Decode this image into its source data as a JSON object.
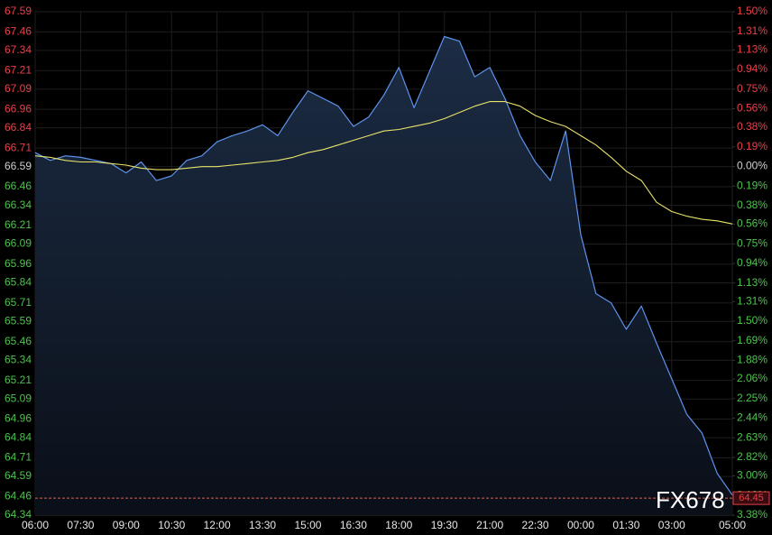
{
  "chart_data": {
    "type": "line",
    "x": [
      "06:00",
      "06:30",
      "07:00",
      "07:30",
      "08:00",
      "08:30",
      "09:00",
      "09:30",
      "10:00",
      "10:30",
      "11:00",
      "11:30",
      "12:00",
      "12:30",
      "13:00",
      "13:30",
      "14:00",
      "14:30",
      "15:00",
      "15:30",
      "16:00",
      "16:30",
      "17:00",
      "17:30",
      "18:00",
      "18:30",
      "19:00",
      "19:30",
      "20:00",
      "20:30",
      "21:00",
      "21:30",
      "22:00",
      "22:30",
      "23:00",
      "23:30",
      "00:00",
      "00:30",
      "01:00",
      "01:30",
      "02:00",
      "02:30",
      "03:00",
      "03:30",
      "04:00",
      "04:30",
      "05:00"
    ],
    "series": [
      {
        "color": "#5d93ec",
        "values": [
          66.68,
          66.63,
          66.66,
          66.65,
          66.63,
          66.61,
          66.55,
          66.62,
          66.5,
          66.53,
          66.63,
          66.66,
          66.75,
          66.79,
          66.82,
          66.86,
          66.79,
          66.94,
          67.08,
          67.03,
          66.98,
          66.85,
          66.91,
          67.05,
          67.23,
          66.97,
          67.2,
          67.43,
          67.4,
          67.17,
          67.23,
          67.03,
          66.79,
          66.62,
          66.5,
          66.82,
          66.15,
          65.77,
          65.71,
          65.54,
          65.69,
          65.45,
          65.22,
          64.99,
          64.87,
          64.61,
          64.47
        ]
      },
      {
        "color": "#e8e46a",
        "values": [
          66.66,
          66.65,
          66.63,
          66.62,
          66.62,
          66.61,
          66.6,
          66.58,
          66.57,
          66.57,
          66.58,
          66.59,
          66.59,
          66.6,
          66.61,
          66.62,
          66.63,
          66.65,
          66.68,
          66.7,
          66.73,
          66.76,
          66.79,
          66.82,
          66.83,
          66.85,
          66.87,
          66.9,
          66.94,
          66.98,
          67.01,
          67.01,
          66.98,
          66.92,
          66.88,
          66.85,
          66.79,
          66.73,
          66.65,
          66.56,
          66.5,
          66.36,
          66.3,
          66.27,
          66.25,
          66.24,
          66.22
        ]
      }
    ],
    "xlim": [
      "06:00",
      "05:00"
    ],
    "xticks": [
      "06:00",
      "07:30",
      "09:00",
      "10:30",
      "12:00",
      "13:30",
      "15:00",
      "16:30",
      "18:00",
      "19:30",
      "21:00",
      "22:30",
      "00:00",
      "01:30",
      "03:00",
      "05:00"
    ],
    "ylim": [
      64.34,
      67.59
    ],
    "yticks": [
      67.59,
      67.46,
      67.34,
      67.21,
      67.09,
      66.96,
      66.84,
      66.71,
      66.59,
      66.46,
      66.34,
      66.21,
      66.09,
      65.96,
      65.84,
      65.71,
      65.59,
      65.46,
      65.34,
      65.21,
      65.09,
      64.96,
      64.84,
      64.71,
      64.59,
      64.46,
      64.34
    ],
    "y2lim": [
      -3.38,
      1.5
    ],
    "y2ticks": [
      {
        "value": 1.5,
        "label": "1.50%"
      },
      {
        "value": 1.31,
        "label": "1.31%"
      },
      {
        "value": 1.13,
        "label": "1.13%"
      },
      {
        "value": 0.94,
        "label": "0.94%"
      },
      {
        "value": 0.75,
        "label": "0.75%"
      },
      {
        "value": 0.56,
        "label": "0.56%"
      },
      {
        "value": 0.38,
        "label": "0.38%"
      },
      {
        "value": 0.19,
        "label": "0.19%"
      },
      {
        "value": 0,
        "label": "0.00%"
      },
      {
        "value": -0.19,
        "label": "0.19%"
      },
      {
        "value": -0.38,
        "label": "0.38%"
      },
      {
        "value": -0.56,
        "label": "0.56%"
      },
      {
        "value": -0.75,
        "label": "0.75%"
      },
      {
        "value": -0.94,
        "label": "0.94%"
      },
      {
        "value": -1.13,
        "label": "1.13%"
      },
      {
        "value": -1.31,
        "label": "1.31%"
      },
      {
        "value": -1.5,
        "label": "1.50%"
      },
      {
        "value": -1.69,
        "label": "1.69%"
      },
      {
        "value": -1.88,
        "label": "1.88%"
      },
      {
        "value": -2.06,
        "label": "2.06%"
      },
      {
        "value": -2.25,
        "label": "2.25%"
      },
      {
        "value": -2.44,
        "label": "2.44%"
      },
      {
        "value": -2.63,
        "label": "2.63%"
      },
      {
        "value": -2.82,
        "label": "2.82%"
      },
      {
        "value": -3.0,
        "label": "3.00%"
      },
      {
        "value": -3.19,
        "label": "3.19%"
      },
      {
        "value": -3.38,
        "label": "3.38%"
      }
    ],
    "up_color": "#e8404a",
    "down_color": "#4cc34c",
    "flat_color": "#cfcfcf",
    "grid": true,
    "last_price": 64.45,
    "watermark": "FX678"
  }
}
